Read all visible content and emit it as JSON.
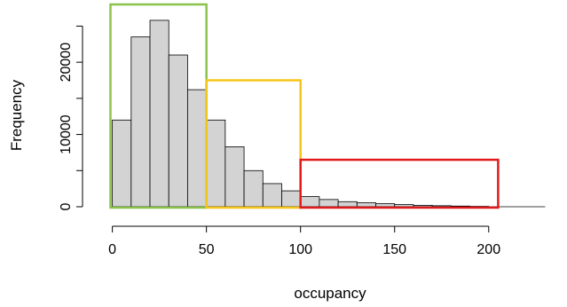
{
  "chart_data": {
    "type": "bar",
    "title": "",
    "xlabel": "occupancy",
    "ylabel": "Frequency",
    "bin_width": 10,
    "bin_edges": [
      0,
      10,
      20,
      30,
      40,
      50,
      60,
      70,
      80,
      90,
      100,
      110,
      120,
      130,
      140,
      150,
      160,
      170,
      180,
      190,
      200
    ],
    "values": [
      12000,
      23500,
      25800,
      21000,
      16200,
      12000,
      8300,
      5000,
      3200,
      2200,
      1400,
      1000,
      700,
      550,
      420,
      300,
      200,
      140,
      90,
      50
    ],
    "xlim": [
      -5,
      235
    ],
    "ylim": [
      0,
      28000
    ],
    "x_ticks": [
      0,
      50,
      100,
      150,
      200
    ],
    "x_tick_labels": [
      "0",
      "50",
      "100",
      "150",
      "200"
    ],
    "y_ticks": [
      0,
      10000,
      20000
    ],
    "y_tick_labels": [
      "0",
      "10000",
      "20000"
    ],
    "grid": false,
    "bar_color": "#d3d3d3",
    "highlights": [
      {
        "x_start": -1,
        "x_end": 50,
        "y_top": 28000,
        "color": "#8bc34a"
      },
      {
        "x_start": 50,
        "x_end": 100,
        "y_top": 17500,
        "color": "#f5c518"
      },
      {
        "x_start": 100,
        "x_end": 205,
        "y_top": 6500,
        "color": "#e31a1c"
      }
    ]
  }
}
